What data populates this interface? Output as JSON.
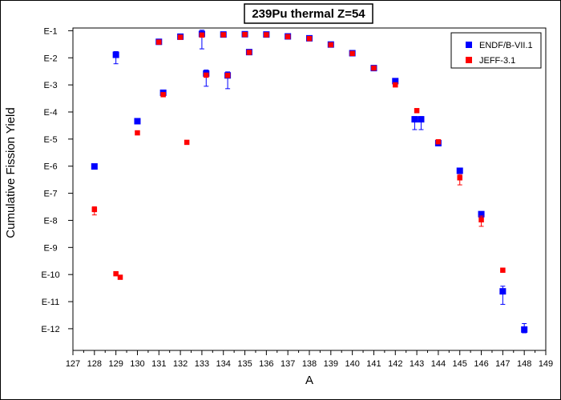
{
  "chart_data": {
    "type": "scatter",
    "title": "239Pu thermal Z=54",
    "xlabel": "A",
    "ylabel": "Cumulative Fission Yield",
    "xlim": [
      127,
      149
    ],
    "ylim": [
      -12.8,
      -0.9
    ],
    "y_scale": "log",
    "x_ticks": [
      "127",
      "128",
      "129",
      "130",
      "131",
      "132",
      "133",
      "134",
      "135",
      "136",
      "137",
      "138",
      "139",
      "140",
      "141",
      "142",
      "143",
      "144",
      "145",
      "146",
      "147",
      "148",
      "149"
    ],
    "y_ticks": [
      {
        "value": -1,
        "label": "E-1"
      },
      {
        "value": -2,
        "label": "E-2"
      },
      {
        "value": -3,
        "label": "E-3"
      },
      {
        "value": -4,
        "label": "E-4"
      },
      {
        "value": -5,
        "label": "E-5"
      },
      {
        "value": -6,
        "label": "E-6"
      },
      {
        "value": -7,
        "label": "E-7"
      },
      {
        "value": -8,
        "label": "E-8"
      },
      {
        "value": -9,
        "label": "E-9"
      },
      {
        "value": -10,
        "label": "E-10"
      },
      {
        "value": -11,
        "label": "E-11"
      },
      {
        "value": -12,
        "label": "E-12"
      }
    ],
    "legend_position": "top-right",
    "grid": false,
    "series": [
      {
        "name": "ENDF/B-VII.1",
        "color": "#0000ff",
        "marker": "square",
        "points": [
          {
            "x": 128,
            "y": -6.01
          },
          {
            "x": 129,
            "y": -1.89,
            "err_lo": 0.33,
            "err_hi": 0.12
          },
          {
            "x": 130,
            "y": -4.34
          },
          {
            "x": 131,
            "y": -1.41
          },
          {
            "x": 131.2,
            "y": -3.29
          },
          {
            "x": 132,
            "y": -1.22
          },
          {
            "x": 133,
            "y": -1.12,
            "err_lo": 0.55,
            "err_hi": 0.14
          },
          {
            "x": 133.2,
            "y": -2.58,
            "err_lo": 0.47,
            "err_hi": 0.13
          },
          {
            "x": 134,
            "y": -1.14
          },
          {
            "x": 134.2,
            "y": -2.65,
            "err_lo": 0.49,
            "err_hi": 0.13
          },
          {
            "x": 135,
            "y": -1.13
          },
          {
            "x": 135.2,
            "y": -1.79
          },
          {
            "x": 136,
            "y": -1.14
          },
          {
            "x": 137,
            "y": -1.21
          },
          {
            "x": 138,
            "y": -1.28
          },
          {
            "x": 139,
            "y": -1.51
          },
          {
            "x": 140,
            "y": -1.83
          },
          {
            "x": 141,
            "y": -2.38
          },
          {
            "x": 142,
            "y": -2.86
          },
          {
            "x": 142.9,
            "y": -4.27,
            "err_lo": 0.38,
            "err_hi": 0.1
          },
          {
            "x": 143.2,
            "y": -4.27,
            "err_lo": 0.38,
            "err_hi": 0.1
          },
          {
            "x": 144,
            "y": -5.15
          },
          {
            "x": 145,
            "y": -6.17
          },
          {
            "x": 146,
            "y": -7.77
          },
          {
            "x": 147,
            "y": -10.62,
            "err_lo": 0.48,
            "err_hi": 0.19
          },
          {
            "x": 148,
            "y": -12.03,
            "err_lo": 0.12,
            "err_hi": 0.22
          }
        ]
      },
      {
        "name": "JEFF-3.1",
        "color": "#ff0000",
        "marker": "square",
        "points": [
          {
            "x": 128,
            "y": -7.6,
            "err_lo": 0.2,
            "err_hi": 0.1
          },
          {
            "x": 129,
            "y": -9.97
          },
          {
            "x": 129.2,
            "y": -10.1
          },
          {
            "x": 130,
            "y": -4.77
          },
          {
            "x": 131,
            "y": -1.42
          },
          {
            "x": 131.2,
            "y": -3.36
          },
          {
            "x": 132,
            "y": -1.24
          },
          {
            "x": 132.3,
            "y": -5.12
          },
          {
            "x": 133,
            "y": -1.16
          },
          {
            "x": 133.2,
            "y": -2.64
          },
          {
            "x": 134,
            "y": -1.15
          },
          {
            "x": 134.2,
            "y": -2.65
          },
          {
            "x": 135,
            "y": -1.14
          },
          {
            "x": 135.2,
            "y": -1.8
          },
          {
            "x": 136,
            "y": -1.15
          },
          {
            "x": 137,
            "y": -1.22
          },
          {
            "x": 138,
            "y": -1.29
          },
          {
            "x": 139,
            "y": -1.52
          },
          {
            "x": 140,
            "y": -1.84
          },
          {
            "x": 141,
            "y": -2.38
          },
          {
            "x": 142,
            "y": -3.0
          },
          {
            "x": 143,
            "y": -3.95
          },
          {
            "x": 144,
            "y": -5.1
          },
          {
            "x": 145,
            "y": -6.43,
            "err_lo": 0.26,
            "err_hi": 0.12
          },
          {
            "x": 146,
            "y": -7.98,
            "err_lo": 0.24,
            "err_hi": 0.14
          },
          {
            "x": 147,
            "y": -9.84
          }
        ]
      }
    ]
  }
}
